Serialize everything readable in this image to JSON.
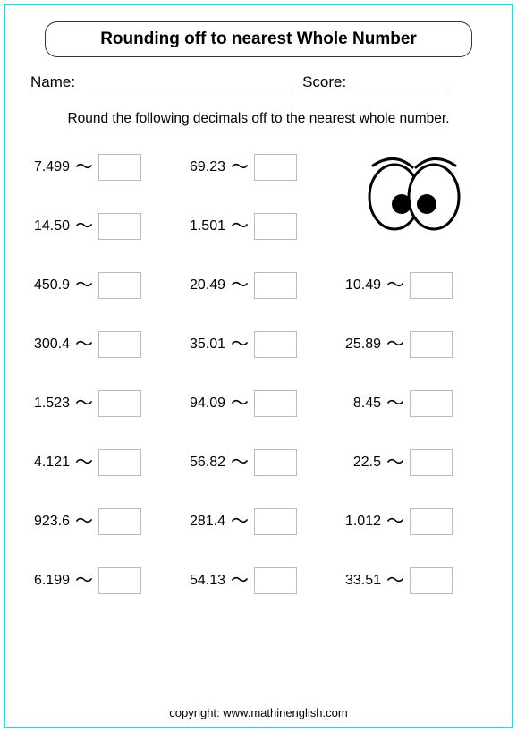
{
  "title": "Rounding off to nearest Whole Number",
  "labels": {
    "name": "Name:",
    "score": "Score:"
  },
  "instruction": "Round the following decimals off to the nearest whole number.",
  "tilde": "～",
  "problems": {
    "col1": [
      "7.499",
      "14.50",
      "450.9",
      "300.4",
      "1.523",
      "4.121",
      "923.6",
      "6.199"
    ],
    "col2": [
      "69.23",
      "1.501",
      "20.49",
      "35.01",
      "94.09",
      "56.82",
      "281.4",
      "54.13"
    ],
    "col3": [
      "10.49",
      "25.89",
      "8.45",
      "22.5",
      "1.012",
      "33.51"
    ]
  },
  "copyright": "copyright:   www.mathinenglish.com",
  "colors": {
    "frame": "#27d8d8",
    "box_border": "#bbbbbb"
  }
}
